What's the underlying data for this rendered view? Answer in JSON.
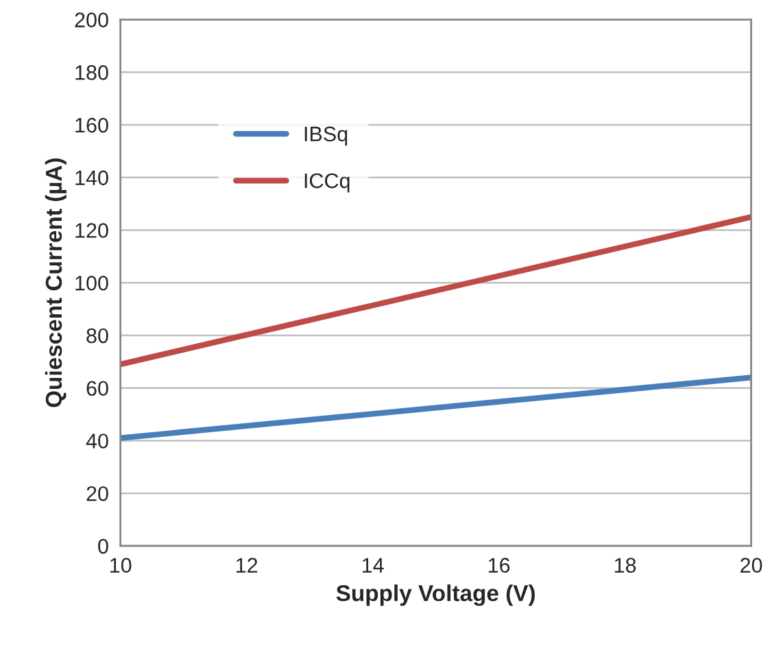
{
  "chart_data": {
    "type": "line",
    "xlabel": "Supply Voltage (V)",
    "ylabel": "Quiescent Current (µA)",
    "x": [
      10,
      12,
      14,
      16,
      18,
      20
    ],
    "series": [
      {
        "name": "IBSq",
        "color": "#4a7ebb",
        "values": [
          41,
          45.6,
          50.2,
          54.8,
          59.4,
          64
        ]
      },
      {
        "name": "ICCq",
        "color": "#be4b48",
        "values": [
          69,
          80.2,
          91.4,
          102.6,
          113.8,
          125
        ]
      }
    ],
    "xlim": [
      10,
      20
    ],
    "xticks": [
      10,
      12,
      14,
      16,
      18,
      20
    ],
    "ylim": [
      0,
      200
    ],
    "yticks": [
      0,
      20,
      40,
      60,
      80,
      100,
      120,
      140,
      160,
      180,
      200
    ],
    "grid": "y",
    "legend": "top left",
    "marker": "none",
    "line_style": "solid"
  }
}
